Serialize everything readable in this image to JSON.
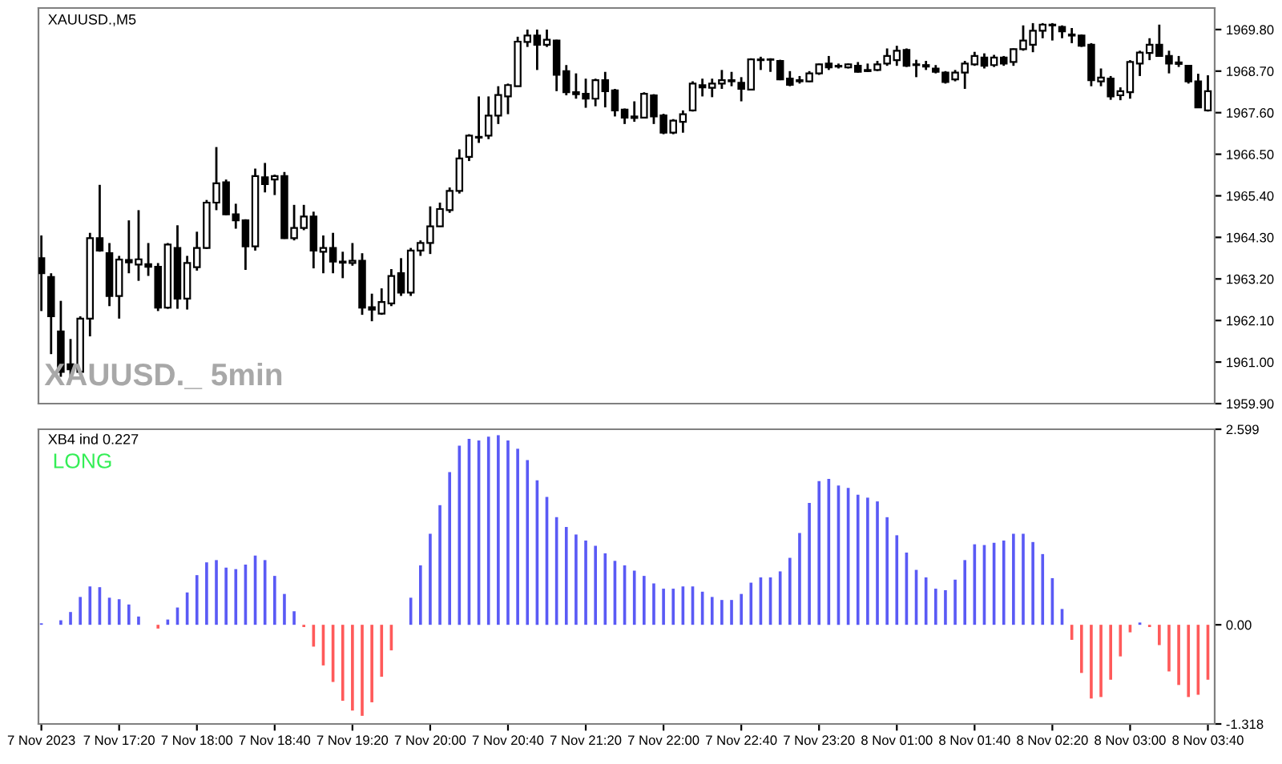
{
  "chart_data": [
    {
      "type": "candlestick",
      "title": "XAUUSD.,M5",
      "annotations": [
        "XAUUSD._ 5min"
      ],
      "tick_labels": "y",
      "categories": [
        null,
        null,
        null,
        null,
        null,
        null,
        null,
        null,
        null,
        null,
        null,
        null,
        null,
        null,
        null,
        null,
        null,
        null,
        null,
        null,
        null,
        null,
        null,
        null,
        null,
        null,
        null,
        null,
        null,
        null,
        null,
        null,
        null,
        null,
        null,
        null,
        null,
        null,
        null,
        null,
        null,
        null,
        null,
        null,
        null,
        null,
        null,
        null,
        null,
        null,
        null,
        null,
        null,
        null,
        null,
        null,
        null,
        null,
        null,
        null,
        null,
        null,
        null,
        null,
        null,
        null,
        null,
        null,
        null,
        null,
        null,
        null,
        null,
        null,
        null,
        null,
        null,
        null,
        null,
        null,
        null,
        null,
        null,
        null,
        null,
        null,
        null,
        null,
        null,
        null,
        null,
        null,
        null,
        null,
        null,
        null,
        null,
        null,
        null,
        null,
        null,
        null,
        null,
        null,
        null,
        null,
        null,
        null,
        null,
        null,
        null,
        null,
        null,
        null,
        null,
        null,
        null,
        null,
        null,
        null,
        null
      ],
      "ohlc": [
        [
          1963.75,
          1964.35,
          1962.35,
          1963.35
        ],
        [
          1963.25,
          1963.35,
          1961.21,
          1962.21
        ],
        [
          1961.81,
          1962.62,
          1960.61,
          1960.74
        ],
        [
          1960.94,
          1961.61,
          1960.61,
          1960.81
        ],
        [
          1960.74,
          1962.21,
          1960.67,
          1962.15
        ],
        [
          1962.15,
          1964.42,
          1961.68,
          1964.28
        ],
        [
          1964.28,
          1965.69,
          1963.92,
          1963.95
        ],
        [
          1963.88,
          1964.15,
          1962.48,
          1962.75
        ],
        [
          1962.75,
          1963.81,
          1962.15,
          1963.71
        ],
        [
          1963.7,
          1964.75,
          1963.35,
          1963.64
        ],
        [
          1963.58,
          1965.02,
          1963.15,
          1963.72
        ],
        [
          1963.59,
          1964.15,
          1963.28,
          1963.52
        ],
        [
          1963.52,
          1963.62,
          1962.35,
          1962.44
        ],
        [
          1962.44,
          1964.15,
          1962.41,
          1964.11
        ],
        [
          1964.02,
          1964.62,
          1962.41,
          1962.68
        ],
        [
          1962.68,
          1963.81,
          1962.39,
          1963.62
        ],
        [
          1963.51,
          1964.45,
          1963.42,
          1964.02
        ],
        [
          1964.02,
          1965.29,
          1963.99,
          1965.22
        ],
        [
          1965.22,
          1966.69,
          1965.02,
          1965.73
        ],
        [
          1965.76,
          1965.83,
          1964.89,
          1964.91
        ],
        [
          1964.91,
          1965.19,
          1964.53,
          1964.75
        ],
        [
          1964.75,
          1964.78,
          1963.44,
          1964.06
        ],
        [
          1964.06,
          1966.12,
          1963.95,
          1965.92
        ],
        [
          1965.89,
          1966.27,
          1965.49,
          1965.71
        ],
        [
          1965.83,
          1965.96,
          1965.42,
          1965.92
        ],
        [
          1965.92,
          1966.03,
          1964.26,
          1964.28
        ],
        [
          1964.28,
          1965.16,
          1964.22,
          1964.55
        ],
        [
          1964.55,
          1965.16,
          1964.49,
          1964.85
        ],
        [
          1964.85,
          1964.98,
          1963.48,
          1963.95
        ],
        [
          1963.92,
          1964.35,
          1963.35,
          1964.02
        ],
        [
          1964.02,
          1964.42,
          1963.35,
          1963.66
        ],
        [
          1963.66,
          1963.92,
          1963.22,
          1963.63
        ],
        [
          1963.62,
          1964.15,
          1963.55,
          1963.68
        ],
        [
          1963.68,
          1963.88,
          1962.25,
          1962.44
        ],
        [
          1962.45,
          1962.81,
          1962.08,
          1962.39
        ],
        [
          1962.28,
          1962.95,
          1962.25,
          1962.59
        ],
        [
          1962.55,
          1963.46,
          1962.48,
          1963.28
        ],
        [
          1963.35,
          1963.75,
          1962.75,
          1962.84
        ],
        [
          1962.84,
          1964.02,
          1962.75,
          1963.95
        ],
        [
          1963.95,
          1964.22,
          1963.81,
          1964.15
        ],
        [
          1964.15,
          1965.12,
          1963.86,
          1964.59
        ],
        [
          1964.59,
          1965.22,
          1964.58,
          1965.05
        ],
        [
          1965.02,
          1965.62,
          1964.95,
          1965.53
        ],
        [
          1965.53,
          1966.63,
          1965.46,
          1966.39
        ],
        [
          1966.43,
          1967.03,
          1966.32,
          1966.99
        ],
        [
          1966.96,
          1968.03,
          1966.8,
          1966.94
        ],
        [
          1966.99,
          1968.03,
          1966.9,
          1967.52
        ],
        [
          1967.52,
          1968.3,
          1967.3,
          1968.07
        ],
        [
          1968.03,
          1968.37,
          1967.56,
          1968.33
        ],
        [
          1968.3,
          1969.61,
          1968.3,
          1969.48
        ],
        [
          1969.47,
          1969.8,
          1969.34,
          1969.64
        ],
        [
          1969.64,
          1969.8,
          1968.73,
          1969.4
        ],
        [
          1969.4,
          1969.8,
          1969.34,
          1969.53
        ],
        [
          1969.51,
          1969.53,
          1968.17,
          1968.6
        ],
        [
          1968.7,
          1968.86,
          1968.06,
          1968.14
        ],
        [
          1968.14,
          1968.64,
          1967.97,
          1968.09
        ],
        [
          1968.1,
          1968.5,
          1967.73,
          1967.97
        ],
        [
          1967.97,
          1968.5,
          1967.77,
          1968.46
        ],
        [
          1968.46,
          1968.68,
          1967.74,
          1968.17
        ],
        [
          1968.19,
          1968.23,
          1967.5,
          1967.66
        ],
        [
          1967.68,
          1967.71,
          1967.3,
          1967.47
        ],
        [
          1967.5,
          1967.9,
          1967.36,
          1967.46
        ],
        [
          1967.47,
          1968.14,
          1967.46,
          1968.1
        ],
        [
          1968.06,
          1968.09,
          1967.3,
          1967.5
        ],
        [
          1967.53,
          1967.57,
          1967.03,
          1967.07
        ],
        [
          1967.07,
          1967.43,
          1967.03,
          1967.39
        ],
        [
          1967.36,
          1967.66,
          1967.07,
          1967.56
        ],
        [
          1967.66,
          1968.43,
          1967.63,
          1968.37
        ],
        [
          1968.33,
          1968.5,
          1968.03,
          1968.27
        ],
        [
          1968.26,
          1968.5,
          1968.01,
          1968.37
        ],
        [
          1968.37,
          1968.73,
          1968.23,
          1968.46
        ],
        [
          1968.46,
          1968.68,
          1968.3,
          1968.43
        ],
        [
          1968.39,
          1968.54,
          1967.9,
          1968.23
        ],
        [
          1968.21,
          1969.04,
          1968.19,
          1969.01
        ],
        [
          1968.99,
          1969.08,
          1968.73,
          1969.01
        ],
        [
          1969.01,
          1969.04,
          1968.68,
          1969.0
        ],
        [
          1968.97,
          1969.0,
          1968.46,
          1968.48
        ],
        [
          1968.5,
          1968.7,
          1968.3,
          1968.34
        ],
        [
          1968.43,
          1968.57,
          1968.37,
          1968.46
        ],
        [
          1968.43,
          1968.7,
          1968.41,
          1968.64
        ],
        [
          1968.64,
          1968.9,
          1968.6,
          1968.88
        ],
        [
          1968.9,
          1969.1,
          1968.73,
          1968.8
        ],
        [
          1968.84,
          1968.9,
          1968.77,
          1968.82
        ],
        [
          1968.8,
          1968.9,
          1968.77,
          1968.88
        ],
        [
          1968.84,
          1968.94,
          1968.66,
          1968.68
        ],
        [
          1968.73,
          1968.9,
          1968.68,
          1968.7
        ],
        [
          1968.73,
          1968.97,
          1968.7,
          1968.88
        ],
        [
          1968.9,
          1969.3,
          1968.84,
          1969.1
        ],
        [
          1968.99,
          1969.37,
          1968.84,
          1969.24
        ],
        [
          1969.26,
          1969.3,
          1968.81,
          1968.84
        ],
        [
          1968.88,
          1969.0,
          1968.54,
          1968.86
        ],
        [
          1968.86,
          1968.97,
          1968.73,
          1968.82
        ],
        [
          1968.77,
          1968.86,
          1968.64,
          1968.68
        ],
        [
          1968.66,
          1968.7,
          1968.37,
          1968.41
        ],
        [
          1968.48,
          1968.73,
          1968.43,
          1968.66
        ],
        [
          1968.66,
          1968.97,
          1968.23,
          1968.9
        ],
        [
          1968.88,
          1969.21,
          1968.84,
          1969.1
        ],
        [
          1969.06,
          1969.17,
          1968.77,
          1968.84
        ],
        [
          1968.86,
          1969.13,
          1968.81,
          1969.06
        ],
        [
          1969.06,
          1969.1,
          1968.84,
          1968.9
        ],
        [
          1968.94,
          1969.3,
          1968.84,
          1969.28
        ],
        [
          1969.28,
          1969.91,
          1969.24,
          1969.51
        ],
        [
          1969.4,
          1969.97,
          1969.2,
          1969.77
        ],
        [
          1969.77,
          1969.97,
          1969.57,
          1969.93
        ],
        [
          1969.91,
          1969.97,
          1969.51,
          1969.93
        ],
        [
          1969.87,
          1969.91,
          1969.57,
          1969.75
        ],
        [
          1969.67,
          1969.84,
          1969.44,
          1969.64
        ],
        [
          1969.64,
          1969.67,
          1969.34,
          1969.37
        ],
        [
          1969.4,
          1969.44,
          1968.3,
          1968.46
        ],
        [
          1968.43,
          1968.77,
          1968.3,
          1968.53
        ],
        [
          1968.5,
          1968.57,
          1967.94,
          1968.03
        ],
        [
          1968.06,
          1968.27,
          1967.93,
          1968.17
        ],
        [
          1968.14,
          1968.99,
          1967.97,
          1968.94
        ],
        [
          1968.9,
          1969.24,
          1968.57,
          1969.19
        ],
        [
          1969.18,
          1969.57,
          1968.99,
          1969.4
        ],
        [
          1969.4,
          1969.93,
          1969.08,
          1969.1
        ],
        [
          1969.1,
          1969.24,
          1968.64,
          1968.9
        ],
        [
          1968.93,
          1969.1,
          1968.81,
          1968.89
        ],
        [
          1968.84,
          1968.86,
          1968.37,
          1968.43
        ],
        [
          1968.43,
          1968.63,
          1967.74,
          1967.74
        ],
        [
          1967.66,
          1968.59,
          1967.63,
          1968.17
        ]
      ],
      "ylim": [
        1959.9,
        1970.37
      ],
      "yticks": [
        {
          "value": 1959.9,
          "label": "1959.90"
        },
        {
          "value": 1961.0,
          "label": "1961.00"
        },
        {
          "value": 1962.1,
          "label": "1962.10"
        },
        {
          "value": 1963.2,
          "label": "1963.20"
        },
        {
          "value": 1964.3,
          "label": "1964.30"
        },
        {
          "value": 1965.4,
          "label": "1965.40"
        },
        {
          "value": 1966.5,
          "label": "1966.50"
        },
        {
          "value": 1967.6,
          "label": "1967.60"
        },
        {
          "value": 1968.7,
          "label": "1968.70"
        },
        {
          "value": 1969.8,
          "label": "1969.80"
        }
      ]
    },
    {
      "type": "bar",
      "title": "XB4 ind 0.227",
      "annotations": [
        "LONG"
      ],
      "categories": [
        "7 Nov 2023",
        null,
        null,
        null,
        null,
        null,
        null,
        null,
        "7 Nov 17:20",
        null,
        null,
        null,
        null,
        null,
        null,
        null,
        "7 Nov 18:00",
        null,
        null,
        null,
        null,
        null,
        null,
        null,
        "7 Nov 18:40",
        null,
        null,
        null,
        null,
        null,
        null,
        null,
        "7 Nov 19:20",
        null,
        null,
        null,
        null,
        null,
        null,
        null,
        "7 Nov 20:00",
        null,
        null,
        null,
        null,
        null,
        null,
        null,
        "7 Nov 20:40",
        null,
        null,
        null,
        null,
        null,
        null,
        null,
        "7 Nov 21:20",
        null,
        null,
        null,
        null,
        null,
        null,
        null,
        "7 Nov 22:00",
        null,
        null,
        null,
        null,
        null,
        null,
        null,
        "7 Nov 22:40",
        null,
        null,
        null,
        null,
        null,
        null,
        null,
        "7 Nov 23:20",
        null,
        null,
        null,
        null,
        null,
        null,
        null,
        "8 Nov 01:00",
        null,
        null,
        null,
        null,
        null,
        null,
        null,
        "8 Nov 01:40",
        null,
        null,
        null,
        null,
        null,
        null,
        null,
        "8 Nov 02:20",
        null,
        null,
        null,
        null,
        null,
        null,
        null,
        "8 Nov 03:00",
        null,
        null,
        null,
        null,
        null,
        null,
        null,
        "8 Nov 03:40"
      ],
      "values": [
        0.02,
        null,
        0.06,
        0.17,
        0.37,
        0.51,
        0.5,
        0.36,
        0.34,
        0.27,
        0.11,
        null,
        -0.05,
        0.07,
        0.23,
        0.43,
        0.66,
        0.83,
        0.86,
        0.76,
        0.74,
        0.8,
        0.92,
        0.86,
        0.65,
        0.41,
        0.18,
        -0.03,
        -0.29,
        -0.54,
        -0.76,
        -1.01,
        -1.14,
        -1.21,
        -1.03,
        -0.69,
        -0.34,
        null,
        0.36,
        0.79,
        1.21,
        1.59,
        2.03,
        2.38,
        2.47,
        2.45,
        2.5,
        2.52,
        2.45,
        2.34,
        2.19,
        1.92,
        1.7,
        1.43,
        1.3,
        1.2,
        1.12,
        1.05,
        0.95,
        0.85,
        0.79,
        0.72,
        0.65,
        0.55,
        0.48,
        0.48,
        0.51,
        0.51,
        0.44,
        0.37,
        0.33,
        0.33,
        0.41,
        0.56,
        0.63,
        0.63,
        0.71,
        0.89,
        1.22,
        1.62,
        1.91,
        1.94,
        1.85,
        1.82,
        1.73,
        1.69,
        1.64,
        1.43,
        1.19,
        0.96,
        0.73,
        0.63,
        0.48,
        0.46,
        0.6,
        0.86,
        1.07,
        1.06,
        1.09,
        1.12,
        1.21,
        1.21,
        1.1,
        0.94,
        0.62,
        0.21,
        -0.2,
        -0.64,
        -0.98,
        -0.96,
        -0.73,
        -0.42,
        -0.1,
        0.03,
        -0.03,
        -0.27,
        -0.62,
        -0.8,
        -0.96,
        -0.93,
        -0.73
      ],
      "colors": [
        "#5a5af5",
        "#5a5af5",
        "#5a5af5",
        "#5a5af5",
        "#5a5af5",
        "#5a5af5",
        "#5a5af5",
        "#5a5af5",
        "#5a5af5",
        "#5a5af5",
        "#5a5af5",
        "#5a5af5",
        "#ff5a5a",
        "#5a5af5",
        "#5a5af5",
        "#5a5af5",
        "#5a5af5",
        "#5a5af5",
        "#5a5af5",
        "#5a5af5",
        "#5a5af5",
        "#5a5af5",
        "#5a5af5",
        "#5a5af5",
        "#5a5af5",
        "#5a5af5",
        "#5a5af5",
        "#ff5a5a",
        "#ff5a5a",
        "#ff5a5a",
        "#ff5a5a",
        "#ff5a5a",
        "#ff5a5a",
        "#ff5a5a",
        "#ff5a5a",
        "#ff5a5a",
        "#ff5a5a",
        "#5a5af5",
        "#5a5af5",
        "#5a5af5",
        "#5a5af5",
        "#5a5af5",
        "#5a5af5",
        "#5a5af5",
        "#5a5af5",
        "#5a5af5",
        "#5a5af5",
        "#5a5af5",
        "#5a5af5",
        "#5a5af5",
        "#5a5af5",
        "#5a5af5",
        "#5a5af5",
        "#5a5af5",
        "#5a5af5",
        "#5a5af5",
        "#5a5af5",
        "#5a5af5",
        "#5a5af5",
        "#5a5af5",
        "#5a5af5",
        "#5a5af5",
        "#5a5af5",
        "#5a5af5",
        "#5a5af5",
        "#5a5af5",
        "#5a5af5",
        "#5a5af5",
        "#5a5af5",
        "#5a5af5",
        "#5a5af5",
        "#5a5af5",
        "#5a5af5",
        "#5a5af5",
        "#5a5af5",
        "#5a5af5",
        "#5a5af5",
        "#5a5af5",
        "#5a5af5",
        "#5a5af5",
        "#5a5af5",
        "#5a5af5",
        "#5a5af5",
        "#5a5af5",
        "#5a5af5",
        "#5a5af5",
        "#5a5af5",
        "#5a5af5",
        "#5a5af5",
        "#5a5af5",
        "#5a5af5",
        "#5a5af5",
        "#5a5af5",
        "#5a5af5",
        "#5a5af5",
        "#5a5af5",
        "#5a5af5",
        "#5a5af5",
        "#5a5af5",
        "#5a5af5",
        "#5a5af5",
        "#5a5af5",
        "#5a5af5",
        "#5a5af5",
        "#5a5af5",
        "#5a5af5",
        "#ff5a5a",
        "#ff5a5a",
        "#ff5a5a",
        "#ff5a5a",
        "#ff5a5a",
        "#ff5a5a",
        "#ff5a5a",
        "#5a5af5",
        "#ff5a5a",
        "#ff5a5a",
        "#ff5a5a",
        "#ff5a5a",
        "#ff5a5a",
        "#ff5a5a",
        "#ff5a5a"
      ],
      "ylim": [
        -1.318,
        2.599
      ],
      "yticks": [
        -1.318,
        {
          "value": 0,
          "label": "0.00"
        },
        2.599
      ]
    }
  ]
}
